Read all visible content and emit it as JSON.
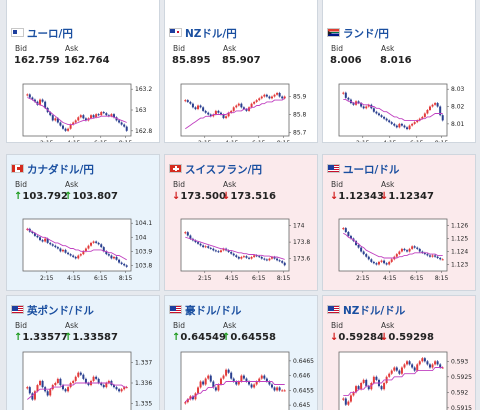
{
  "cards": [
    {
      "pair": "ユーロ/円",
      "flag": "eu-flag",
      "theme": "white",
      "row": 0,
      "col": 0,
      "bid_label": "Bid",
      "ask_label": "Ask",
      "bid": "162.759",
      "ask": "162.764",
      "direction": "none",
      "chart_data": {
        "type": "candlestick",
        "x_ticks": [
          "2:15",
          "4:15",
          "6:15",
          "8:15"
        ],
        "y_ticks": [
          "163.2",
          "163",
          "162.8"
        ],
        "ylim": [
          162.75,
          163.25
        ],
        "closes": [
          163.15,
          163.12,
          163.1,
          163.08,
          163.05,
          163.1,
          163.08,
          163.02,
          162.98,
          162.95,
          162.9,
          162.92,
          162.88,
          162.85,
          162.82,
          162.8,
          162.82,
          162.86,
          162.88,
          162.9,
          162.93,
          162.95,
          162.92,
          162.9,
          162.92,
          162.95,
          162.93,
          162.96,
          162.95,
          162.98,
          162.97,
          162.95,
          162.94,
          162.96,
          162.93,
          162.9,
          162.88,
          162.86,
          162.84,
          162.8
        ],
        "ma": [
          163.12,
          163.11,
          163.1,
          163.08,
          163.06,
          163.05,
          163.04,
          163.02,
          163.0,
          162.98,
          162.96,
          162.94,
          162.92,
          162.9,
          162.88,
          162.87,
          162.86,
          162.86,
          162.86,
          162.87,
          162.88,
          162.89,
          162.9,
          162.9,
          162.91,
          162.92,
          162.92,
          162.93,
          162.93,
          162.94,
          162.94,
          162.94,
          162.94,
          162.94,
          162.93,
          162.92,
          162.91,
          162.9,
          162.89,
          162.88
        ]
      }
    },
    {
      "pair": "NZドル/円",
      "flag": "nz-flag",
      "theme": "white",
      "row": 0,
      "col": 1,
      "bid_label": "Bid",
      "ask_label": "Ask",
      "bid": "85.895",
      "ask": "85.907",
      "direction": "none",
      "chart_data": {
        "type": "candlestick",
        "x_ticks": [
          "2:15",
          "4:15",
          "6:15",
          "8:15"
        ],
        "y_ticks": [
          "85.9",
          "85.8",
          "85.7"
        ],
        "ylim": [
          85.68,
          85.97
        ],
        "closes": [
          85.88,
          85.87,
          85.86,
          85.84,
          85.83,
          85.85,
          85.84,
          85.82,
          85.81,
          85.8,
          85.79,
          85.8,
          85.82,
          85.81,
          85.8,
          85.78,
          85.79,
          85.81,
          85.82,
          85.84,
          85.85,
          85.86,
          85.84,
          85.83,
          85.82,
          85.84,
          85.86,
          85.87,
          85.88,
          85.89,
          85.9,
          85.91,
          85.9,
          85.89,
          85.9,
          85.91,
          85.92,
          85.9,
          85.89,
          85.9
        ],
        "ma": [
          85.72,
          85.73,
          85.74,
          85.75,
          85.76,
          85.77,
          85.78,
          85.78,
          85.79,
          85.79,
          85.79,
          85.8,
          85.8,
          85.8,
          85.8,
          85.8,
          85.8,
          85.81,
          85.81,
          85.81,
          85.82,
          85.82,
          85.82,
          85.83,
          85.83,
          85.83,
          85.84,
          85.84,
          85.85,
          85.85,
          85.86,
          85.86,
          85.87,
          85.87,
          85.87,
          85.88,
          85.88,
          85.88,
          85.88,
          85.89
        ]
      }
    },
    {
      "pair": "ランド/円",
      "flag": "za-flag",
      "theme": "white",
      "row": 0,
      "col": 2,
      "bid_label": "Bid",
      "ask_label": "Ask",
      "bid": "8.006",
      "ask": "8.016",
      "direction": "none",
      "chart_data": {
        "type": "candlestick",
        "x_ticks": [
          "2:15",
          "4:15",
          "6:15",
          "8:15"
        ],
        "y_ticks": [
          "8.03",
          "8.02",
          "8.01"
        ],
        "ylim": [
          8.003,
          8.033
        ],
        "closes": [
          8.028,
          8.025,
          8.024,
          8.022,
          8.021,
          8.023,
          8.022,
          8.02,
          8.019,
          8.02,
          8.021,
          8.019,
          8.017,
          8.016,
          8.015,
          8.014,
          8.013,
          8.012,
          8.011,
          8.01,
          8.009,
          8.008,
          8.01,
          8.009,
          8.008,
          8.007,
          8.009,
          8.01,
          8.011,
          8.012,
          8.013,
          8.014,
          8.016,
          8.018,
          8.02,
          8.021,
          8.022,
          8.02,
          8.015,
          8.012
        ],
        "ma": [
          8.024,
          8.024,
          8.023,
          8.023,
          8.022,
          8.022,
          8.022,
          8.022,
          8.021,
          8.021,
          8.021,
          8.02,
          8.02,
          8.019,
          8.019,
          8.018,
          8.017,
          8.017,
          8.016,
          8.015,
          8.014,
          8.014,
          8.013,
          8.013,
          8.012,
          8.012,
          8.012,
          8.012,
          8.012,
          8.012,
          8.012,
          8.013,
          8.013,
          8.014,
          8.014,
          8.015,
          8.016,
          8.016,
          8.016,
          8.016
        ]
      }
    },
    {
      "pair": "カナダドル/円",
      "flag": "ca-flag",
      "theme": "blue",
      "row": 1,
      "col": 0,
      "bid_label": "Bid",
      "ask_label": "Ask",
      "bid": "103.792",
      "ask": "103.807",
      "direction": "up",
      "chart_data": {
        "type": "candlestick",
        "x_ticks": [
          "2:15",
          "4:15",
          "6:15",
          "8:15"
        ],
        "y_ticks": [
          "104.1",
          "104",
          "103.9",
          "103.8"
        ],
        "ylim": [
          103.76,
          104.13
        ],
        "closes": [
          104.06,
          104.04,
          104.03,
          104.01,
          104.0,
          103.98,
          103.97,
          103.99,
          103.96,
          103.95,
          103.94,
          103.93,
          103.92,
          103.9,
          103.91,
          103.89,
          103.88,
          103.87,
          103.86,
          103.85,
          103.87,
          103.88,
          103.9,
          103.92,
          103.94,
          103.96,
          103.97,
          103.96,
          103.95,
          103.93,
          103.9,
          103.88,
          103.87,
          103.85,
          103.86,
          103.84,
          103.82,
          103.81,
          103.8,
          103.79
        ],
        "ma": [
          104.06,
          104.05,
          104.04,
          104.03,
          104.02,
          104.01,
          104.0,
          104.0,
          103.99,
          103.98,
          103.97,
          103.96,
          103.96,
          103.95,
          103.94,
          103.94,
          103.93,
          103.92,
          103.92,
          103.91,
          103.91,
          103.9,
          103.9,
          103.9,
          103.9,
          103.9,
          103.91,
          103.91,
          103.91,
          103.91,
          103.9,
          103.9,
          103.89,
          103.89,
          103.88,
          103.87,
          103.87,
          103.86,
          103.85,
          103.84
        ]
      }
    },
    {
      "pair": "スイスフラン/円",
      "flag": "ch-flag",
      "theme": "pink",
      "row": 1,
      "col": 1,
      "bid_label": "Bid",
      "ask_label": "Ask",
      "bid": "173.500",
      "ask": "173.516",
      "direction": "down",
      "chart_data": {
        "type": "candlestick",
        "x_ticks": [
          "2:15",
          "4:15",
          "6:15",
          "8:15"
        ],
        "y_ticks": [
          "174",
          "173.8",
          "173.6"
        ],
        "ylim": [
          173.45,
          174.08
        ],
        "closes": [
          173.92,
          173.88,
          173.84,
          173.82,
          173.8,
          173.78,
          173.76,
          173.74,
          173.75,
          173.73,
          173.72,
          173.7,
          173.69,
          173.68,
          173.7,
          173.72,
          173.7,
          173.68,
          173.66,
          173.64,
          173.62,
          173.6,
          173.62,
          173.63,
          173.61,
          173.6,
          173.62,
          173.64,
          173.63,
          173.62,
          173.6,
          173.59,
          173.58,
          173.6,
          173.62,
          173.6,
          173.58,
          173.57,
          173.55,
          173.52
        ],
        "ma": [
          173.86,
          173.85,
          173.84,
          173.83,
          173.82,
          173.81,
          173.8,
          173.79,
          173.78,
          173.77,
          173.76,
          173.75,
          173.74,
          173.73,
          173.72,
          173.72,
          173.71,
          173.7,
          173.7,
          173.69,
          173.68,
          173.67,
          173.67,
          173.66,
          173.66,
          173.65,
          173.65,
          173.65,
          173.64,
          173.64,
          173.64,
          173.63,
          173.63,
          173.63,
          173.62,
          173.62,
          173.62,
          173.61,
          173.6,
          173.59
        ]
      }
    },
    {
      "pair": "ユーロ/ドル",
      "flag": "eu-us-flag",
      "theme": "pink",
      "row": 1,
      "col": 2,
      "bid_label": "Bid",
      "ask_label": "Ask",
      "bid": "1.12343",
      "ask": "1.12347",
      "direction": "down",
      "chart_data": {
        "type": "candlestick",
        "x_ticks": [
          "2:15",
          "4:15",
          "6:15",
          "8:15"
        ],
        "y_ticks": [
          "1.126",
          "1.125",
          "1.124",
          "1.123"
        ],
        "ylim": [
          1.1225,
          1.1265
        ],
        "closes": [
          1.1258,
          1.1255,
          1.1252,
          1.125,
          1.1248,
          1.1245,
          1.1243,
          1.124,
          1.1238,
          1.1236,
          1.1234,
          1.1232,
          1.1231,
          1.123,
          1.1232,
          1.1233,
          1.1231,
          1.123,
          1.1232,
          1.1234,
          1.1236,
          1.1238,
          1.124,
          1.1242,
          1.1241,
          1.124,
          1.1242,
          1.1244,
          1.1243,
          1.1242,
          1.124,
          1.1239,
          1.1238,
          1.1237,
          1.1236,
          1.1237,
          1.1236,
          1.1235,
          1.1234,
          1.1234
        ],
        "ma": [
          1.1254,
          1.1253,
          1.1251,
          1.125,
          1.1249,
          1.1247,
          1.1246,
          1.1244,
          1.1243,
          1.1241,
          1.124,
          1.1239,
          1.1238,
          1.1237,
          1.1236,
          1.1236,
          1.1235,
          1.1235,
          1.1235,
          1.1235,
          1.1235,
          1.1235,
          1.1236,
          1.1236,
          1.1237,
          1.1237,
          1.1238,
          1.1238,
          1.1239,
          1.1239,
          1.1239,
          1.1239,
          1.1239,
          1.1239,
          1.1238,
          1.1238,
          1.1238,
          1.1237,
          1.1237,
          1.1237
        ]
      }
    },
    {
      "pair": "英ポンド/ドル",
      "flag": "gb-us-flag",
      "theme": "blue",
      "row": 2,
      "col": 0,
      "bid_label": "Bid",
      "ask_label": "Ask",
      "bid": "1.33577",
      "ask": "1.33587",
      "direction": "up",
      "chart_data": {
        "type": "candlestick",
        "x_ticks": [],
        "y_ticks": [
          "1.337",
          "1.336",
          "1.335"
        ],
        "ylim": [
          1.3345,
          1.3375
        ],
        "closes": [
          1.3358,
          1.3355,
          1.3352,
          1.3356,
          1.3359,
          1.3361,
          1.3358,
          1.3356,
          1.3354,
          1.3357,
          1.3359,
          1.336,
          1.3362,
          1.3359,
          1.3357,
          1.3356,
          1.3358,
          1.336,
          1.3361,
          1.3363,
          1.3365,
          1.3364,
          1.3362,
          1.336,
          1.3359,
          1.3361,
          1.3363,
          1.3362,
          1.336,
          1.3359,
          1.3358,
          1.336,
          1.3361,
          1.3359,
          1.3358,
          1.3357,
          1.3356,
          1.3357,
          1.3358,
          1.3358
        ],
        "ma": [
          1.3352,
          1.3353,
          1.3354,
          1.3355,
          1.3356,
          1.3357,
          1.3357,
          1.3357,
          1.3357,
          1.3357,
          1.3358,
          1.3358,
          1.3358,
          1.3358,
          1.3359,
          1.3359,
          1.3359,
          1.3359,
          1.3359,
          1.336,
          1.336,
          1.336,
          1.336,
          1.336,
          1.336,
          1.336,
          1.336,
          1.336,
          1.336,
          1.336,
          1.336,
          1.336,
          1.336,
          1.336,
          1.3359,
          1.3359,
          1.3359,
          1.3359,
          1.3358,
          1.3358
        ]
      }
    },
    {
      "pair": "豪ドル/ドル",
      "flag": "au-us-flag",
      "theme": "blue",
      "row": 2,
      "col": 1,
      "bid_label": "Bid",
      "ask_label": "Ask",
      "bid": "0.64549",
      "ask": "0.64558",
      "direction": "up",
      "chart_data": {
        "type": "candlestick",
        "x_ticks": [],
        "y_ticks": [
          "0.6465",
          "0.646",
          "0.6455",
          "0.645"
        ],
        "ylim": [
          0.6447,
          0.6468
        ],
        "closes": [
          0.6451,
          0.6452,
          0.6453,
          0.6452,
          0.6454,
          0.6456,
          0.6458,
          0.6457,
          0.6459,
          0.646,
          0.6458,
          0.6456,
          0.6455,
          0.6457,
          0.6459,
          0.646,
          0.6462,
          0.6461,
          0.6459,
          0.6458,
          0.6457,
          0.6458,
          0.646,
          0.6459,
          0.6458,
          0.6457,
          0.6456,
          0.6457,
          0.6458,
          0.6459,
          0.646,
          0.6459,
          0.6458,
          0.6457,
          0.6456,
          0.6455,
          0.6456,
          0.6455,
          0.6455,
          0.6455
        ],
        "ma": [
          0.6451,
          0.6452,
          0.6452,
          0.6453,
          0.6453,
          0.6454,
          0.6454,
          0.6455,
          0.6455,
          0.6456,
          0.6456,
          0.6456,
          0.6457,
          0.6457,
          0.6457,
          0.6457,
          0.6458,
          0.6458,
          0.6458,
          0.6458,
          0.6458,
          0.6458,
          0.6458,
          0.6458,
          0.6458,
          0.6458,
          0.6458,
          0.6458,
          0.6458,
          0.6458,
          0.6458,
          0.6458,
          0.6458,
          0.6458,
          0.6458,
          0.6457,
          0.6457,
          0.6457,
          0.6457,
          0.6457
        ]
      }
    },
    {
      "pair": "NZドル/ドル",
      "flag": "nz-us-flag",
      "theme": "pink",
      "row": 2,
      "col": 2,
      "bid_label": "Bid",
      "ask_label": "Ask",
      "bid": "0.59284",
      "ask": "0.59298",
      "direction": "down",
      "chart_data": {
        "type": "candlestick",
        "x_ticks": [],
        "y_ticks": [
          "0.593",
          "0.5925",
          "0.592",
          "0.5915"
        ],
        "ylim": [
          0.5913,
          0.5933
        ],
        "closes": [
          0.5918,
          0.5916,
          0.5917,
          0.5919,
          0.592,
          0.5922,
          0.5921,
          0.5923,
          0.5924,
          0.5922,
          0.5921,
          0.5923,
          0.5925,
          0.5924,
          0.5922,
          0.5921,
          0.5923,
          0.5925,
          0.5926,
          0.5927,
          0.5928,
          0.5927,
          0.5926,
          0.5928,
          0.5929,
          0.593,
          0.5929,
          0.5928,
          0.5927,
          0.5929,
          0.593,
          0.5931,
          0.593,
          0.5929,
          0.5928,
          0.5929,
          0.593,
          0.5929,
          0.5928,
          0.5928
        ],
        "ma": [
          0.5919,
          0.5919,
          0.5919,
          0.592,
          0.592,
          0.592,
          0.5921,
          0.5921,
          0.5921,
          0.5922,
          0.5922,
          0.5922,
          0.5923,
          0.5923,
          0.5923,
          0.5923,
          0.5924,
          0.5924,
          0.5924,
          0.5924,
          0.5925,
          0.5925,
          0.5925,
          0.5925,
          0.5926,
          0.5926,
          0.5926,
          0.5926,
          0.5926,
          0.5927,
          0.5927,
          0.5927,
          0.5927,
          0.5927,
          0.5927,
          0.5927,
          0.5928,
          0.5928,
          0.5928,
          0.5928
        ]
      }
    }
  ]
}
